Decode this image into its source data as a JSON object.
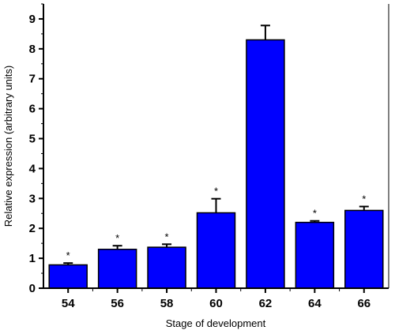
{
  "chart_data": {
    "type": "bar",
    "categories": [
      "54",
      "56",
      "58",
      "60",
      "62",
      "64",
      "66"
    ],
    "values": [
      0.78,
      1.3,
      1.37,
      2.52,
      8.3,
      2.2,
      2.6
    ],
    "errors": [
      0.06,
      0.12,
      0.1,
      0.47,
      0.48,
      0.05,
      0.13
    ],
    "annotations": [
      "*",
      "*",
      "*",
      "*",
      "",
      "*",
      "*"
    ],
    "xlabel": "Stage of development",
    "ylabel": "Relative expression (arbitrary units)",
    "ylim": [
      0,
      9.5
    ],
    "yticks": [
      "0",
      "1",
      "2",
      "3",
      "4",
      "5",
      "6",
      "7",
      "8",
      "9"
    ],
    "bar_color": "#0000ff",
    "grid": false,
    "legend": "none"
  }
}
